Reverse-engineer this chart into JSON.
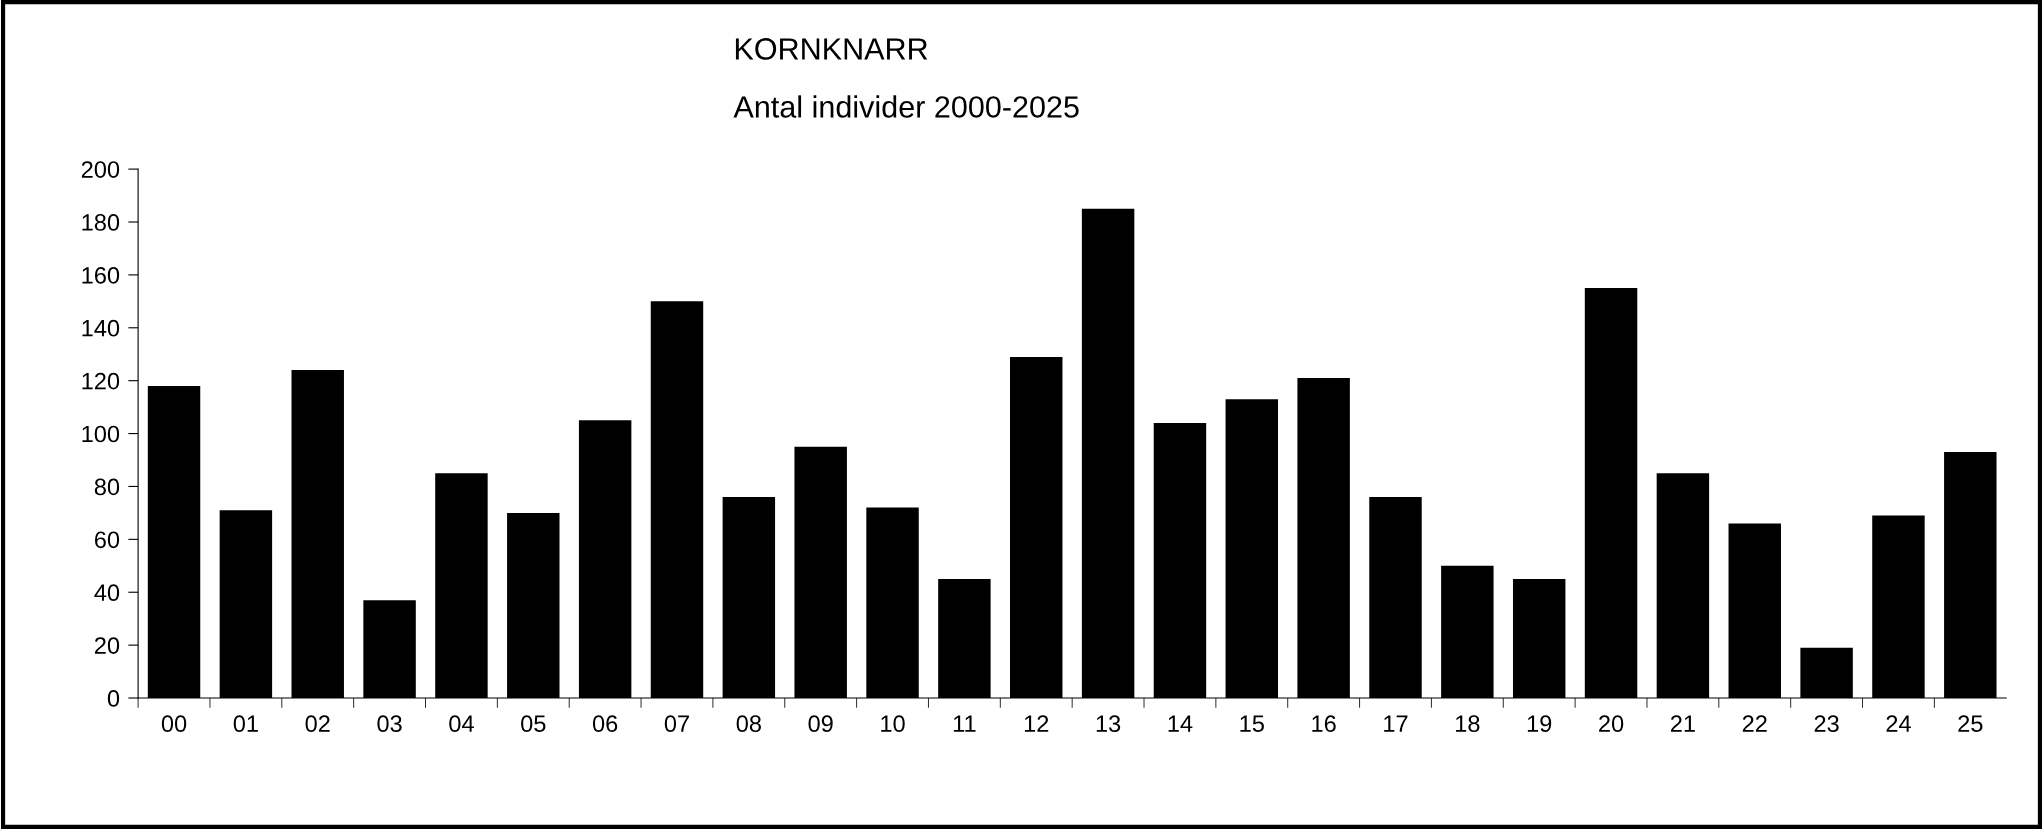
{
  "chart_data": {
    "type": "bar",
    "title": "KORNKNARR",
    "subtitle": "Antal individer 2000-2025",
    "categories": [
      "00",
      "01",
      "02",
      "03",
      "04",
      "05",
      "06",
      "07",
      "08",
      "09",
      "10",
      "11",
      "12",
      "13",
      "14",
      "15",
      "16",
      "17",
      "18",
      "19",
      "20",
      "21",
      "22",
      "23",
      "24",
      "25"
    ],
    "values": [
      118,
      71,
      124,
      37,
      85,
      70,
      105,
      150,
      76,
      95,
      72,
      45,
      129,
      185,
      104,
      113,
      121,
      76,
      50,
      45,
      155,
      85,
      66,
      19,
      69,
      93
    ],
    "color": "#000000",
    "ylim": [
      0,
      200
    ],
    "yticks": [
      0,
      20,
      40,
      60,
      80,
      100,
      120,
      140,
      160,
      180,
      200
    ],
    "grid": false,
    "legend": false
  }
}
